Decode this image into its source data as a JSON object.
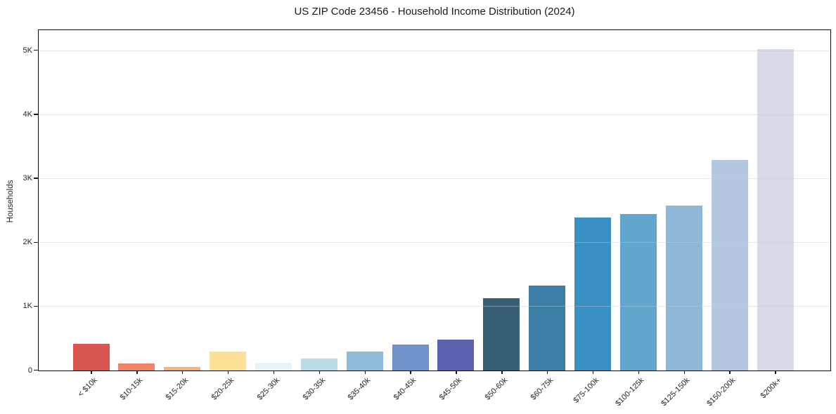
{
  "title": "US ZIP Code 23456 - Household Income Distribution (2024)",
  "chart_data": {
    "type": "bar",
    "title": "US ZIP Code 23456 - Household Income Distribution (2024)",
    "xlabel": "",
    "ylabel": "Households",
    "categories": [
      "< $10k",
      "$10-15k",
      "$15-20k",
      "$20-25k",
      "$25-30k",
      "$30-35k",
      "$35-40k",
      "$40-45k",
      "$45-50k",
      "$50-60k",
      "$60-75k",
      "$75-100k",
      "$100-125k",
      "$125-150k",
      "$150-200k",
      "$200k+"
    ],
    "values": [
      420,
      110,
      55,
      295,
      120,
      185,
      300,
      410,
      480,
      1135,
      1325,
      2390,
      2450,
      2575,
      3290,
      5030
    ],
    "bar_colors": [
      "#d9554f",
      "#ef8468",
      "#f6b470",
      "#fce096",
      "#e8f3f6",
      "#b9dce8",
      "#8fbbd9",
      "#6e92c9",
      "#5c60ae",
      "#365f77",
      "#3a7da5",
      "#3990c4",
      "#61a7cd",
      "#8fb8d8",
      "#b4c9e1",
      "#d8dae7"
    ],
    "yticks": [
      {
        "label": "0",
        "value": 0
      },
      {
        "label": "1K",
        "value": 1000
      },
      {
        "label": "2K",
        "value": 2000
      },
      {
        "label": "3K",
        "value": 3000
      },
      {
        "label": "4K",
        "value": 4000
      },
      {
        "label": "5K",
        "value": 5000
      }
    ],
    "ylim": [
      0,
      5310
    ],
    "grid": "horizontal",
    "legend": "none",
    "colors": {
      "background": "#ffffff",
      "spine": "#0d0d0d",
      "grid": "#e9e9ed",
      "text": "#262626"
    }
  }
}
